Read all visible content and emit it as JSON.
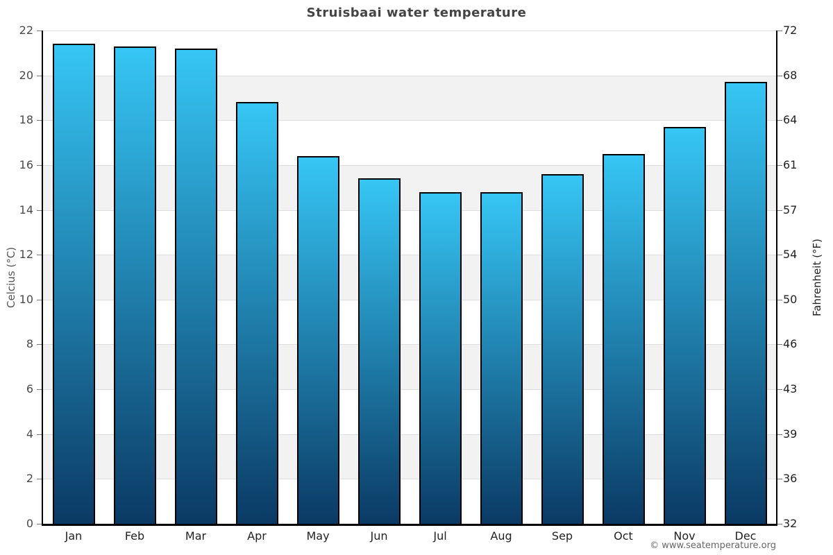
{
  "chart_data": {
    "type": "bar",
    "title": "Struisbaai water temperature",
    "categories": [
      "Jan",
      "Feb",
      "Mar",
      "Apr",
      "May",
      "Jun",
      "Jul",
      "Aug",
      "Sep",
      "Oct",
      "Nov",
      "Dec"
    ],
    "values": [
      21.4,
      21.3,
      21.2,
      18.8,
      16.4,
      15.4,
      14.8,
      14.8,
      15.6,
      16.5,
      17.7,
      19.7
    ],
    "ylabel_left": "Celcius (°C)",
    "ylabel_right": "Fahrenheit (°F)",
    "ylim": [
      0,
      22
    ],
    "yticks_celsius": [
      0,
      2,
      4,
      6,
      8,
      10,
      12,
      14,
      16,
      18,
      20,
      22
    ],
    "yticks_fahrenheit": [
      32,
      36,
      39,
      43,
      46,
      50,
      54,
      57,
      61,
      64,
      68,
      72
    ],
    "grid": true,
    "alternating_bands": true,
    "band_color": "#f2f2f2",
    "gridline_color": "#dddddd",
    "bar_color_top": "#36C6F5",
    "bar_color_bottom": "#0A3A64",
    "bar_border_color": "#000000",
    "source": "© www.seatemperature.org"
  }
}
